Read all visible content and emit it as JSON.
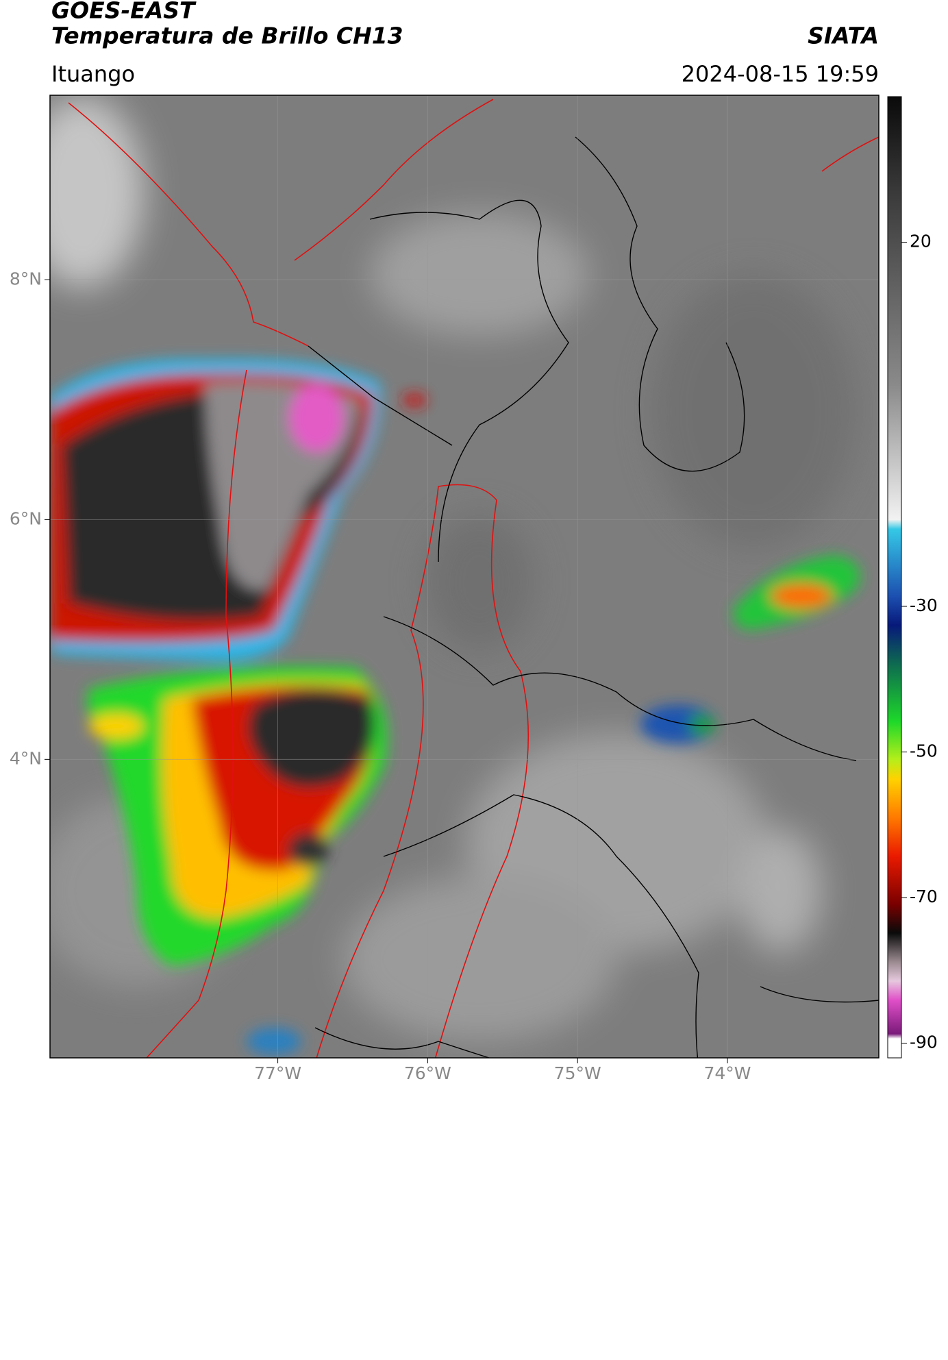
{
  "header": {
    "title": "GOES-EAST",
    "subtitle": "Temperatura de Brillo CH13",
    "agency": "SIATA",
    "location": "Ituango",
    "datetime": "2024-08-15 19:59"
  },
  "map": {
    "type": "map",
    "xlim": [
      -78.52,
      -72.99
    ],
    "ylim": [
      1.51,
      9.54
    ],
    "xticks": [
      {
        "value": -77,
        "label": "77°W"
      },
      {
        "value": -76,
        "label": "76°W"
      },
      {
        "value": -75,
        "label": "75°W"
      },
      {
        "value": -74,
        "label": "74°W"
      }
    ],
    "yticks": [
      {
        "value": 8,
        "label": "8°N"
      },
      {
        "value": 6,
        "label": "6°N"
      },
      {
        "value": 4,
        "label": "4°N"
      }
    ],
    "grid": true
  },
  "colorbar": {
    "clim": [
      -92,
      40
    ],
    "ticks": [
      20,
      -30,
      -50,
      -70,
      -90
    ]
  }
}
